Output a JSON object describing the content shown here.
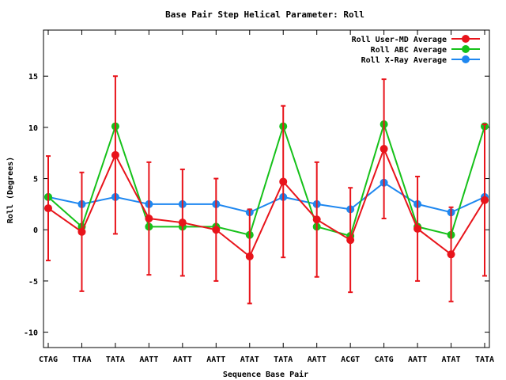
{
  "chart_data": {
    "type": "line",
    "title": "Base Pair Step Helical Parameter: Roll",
    "xlabel": "Sequence Base Pair",
    "ylabel": "Roll (Degrees)",
    "categories": [
      "CTAG",
      "TTAA",
      "TATA",
      "AATT",
      "AATT",
      "AATT",
      "ATAT",
      "TATA",
      "AATT",
      "ACGT",
      "CATG",
      "AATT",
      "ATAT",
      "TATA"
    ],
    "ylim": [
      -11.5,
      19.5
    ],
    "yticks": [
      -10,
      -5,
      0,
      5,
      10,
      15
    ],
    "grid": false,
    "legend_position": "top-right",
    "series": [
      {
        "name": "Roll User-MD Average",
        "color": "#e8141b",
        "values": [
          2.1,
          -0.2,
          7.3,
          1.1,
          0.7,
          0.0,
          -2.6,
          4.7,
          1.0,
          -1.0,
          7.9,
          0.1,
          -2.4,
          2.9
        ],
        "error": [
          5.1,
          5.8,
          7.7,
          5.5,
          5.2,
          5.0,
          4.6,
          7.4,
          5.6,
          5.1,
          6.8,
          5.1,
          4.6,
          7.4
        ]
      },
      {
        "name": "Roll ABC Average",
        "color": "#16c11a",
        "values": [
          3.2,
          0.3,
          10.1,
          0.3,
          0.3,
          0.3,
          -0.5,
          10.1,
          0.3,
          -0.6,
          10.3,
          0.3,
          -0.5,
          10.1
        ]
      },
      {
        "name": "Roll X-Ray Average",
        "color": "#1e87f0",
        "values": [
          3.2,
          2.5,
          3.2,
          2.5,
          2.5,
          2.5,
          1.7,
          3.2,
          2.5,
          2.0,
          4.6,
          2.5,
          1.7,
          3.2
        ]
      }
    ]
  }
}
